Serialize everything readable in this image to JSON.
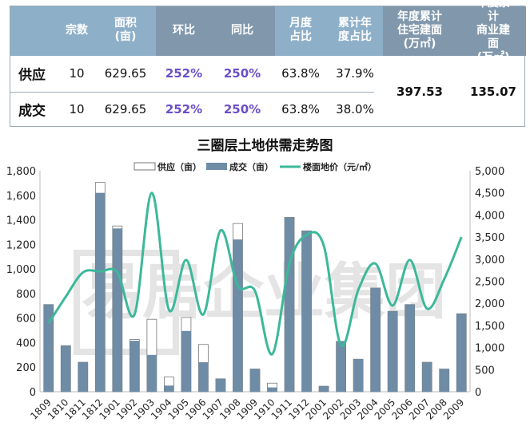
{
  "table": {
    "headers": [
      "宗数",
      "面积\n(亩)",
      "环比",
      "同比",
      "月度\n占比",
      "累计年\n度占比",
      "年度累计\n住宅建面\n(万㎡)",
      "年度累计\n商业建面\n(万㎡)"
    ],
    "rows": [
      {
        "label": "供应",
        "values": [
          "10",
          "629.65",
          "252%",
          "250%",
          "63.8%",
          "37.9%"
        ]
      },
      {
        "label": "成交",
        "values": [
          "10",
          "629.65",
          "252%",
          "250%",
          "63.8%",
          "38.0%"
        ]
      }
    ],
    "merged": [
      "397.53",
      "135.07"
    ],
    "colors": {
      "header_light": "#8eafc8",
      "header_dark": "#8198ac",
      "pct": "#6a4fc8"
    }
  },
  "watermark": "易居企业集团",
  "chart_data": {
    "type": "bar+line",
    "title": "三圈层土地供需走势图",
    "categories": [
      "1809",
      "1810",
      "1811",
      "1812",
      "1901",
      "1902",
      "1903",
      "1904",
      "1905",
      "1906",
      "1907",
      "1908",
      "1909",
      "1910",
      "1911",
      "1912",
      "2001",
      "2002",
      "2003",
      "2004",
      "2005",
      "2006",
      "2007",
      "2008",
      "2009"
    ],
    "series": [
      {
        "name": "供应（亩）",
        "type": "bar",
        "axis": "left",
        "color": "#ffffff",
        "values": [
          710,
          375,
          240,
          1705,
          1350,
          425,
          590,
          120,
          605,
          385,
          105,
          1370,
          185,
          70,
          1420,
          1310,
          45,
          410,
          265,
          845,
          655,
          710,
          240,
          185,
          635
        ]
      },
      {
        "name": "成交（亩）",
        "type": "bar",
        "axis": "left",
        "color": "#6e8ca6",
        "values": [
          710,
          375,
          240,
          1620,
          1330,
          415,
          300,
          50,
          495,
          240,
          105,
          1240,
          185,
          35,
          1420,
          1310,
          45,
          410,
          265,
          845,
          655,
          710,
          240,
          185,
          635
        ]
      },
      {
        "name": "楼面地价（元/㎡）",
        "type": "line",
        "axis": "right",
        "color": "#3cb89a",
        "values": [
          1550,
          2150,
          2700,
          2720,
          2700,
          1750,
          4500,
          1850,
          2980,
          1750,
          3650,
          2400,
          2280,
          850,
          2900,
          3550,
          3300,
          1050,
          2300,
          2900,
          1950,
          2980,
          1880,
          2550,
          3500
        ]
      }
    ],
    "left_axis": {
      "range": [
        0,
        1800
      ],
      "ticks": [
        "0",
        "200",
        "400",
        "600",
        "800",
        "1,000",
        "1,200",
        "1,400",
        "1,600",
        "1,800"
      ]
    },
    "right_axis": {
      "range": [
        0,
        5000
      ],
      "ticks": [
        "0",
        "500",
        "1,000",
        "1,500",
        "2,000",
        "2,500",
        "3,000",
        "3,500",
        "4,000",
        "4,500",
        "5,000"
      ]
    },
    "legend": "top",
    "grid": false
  }
}
